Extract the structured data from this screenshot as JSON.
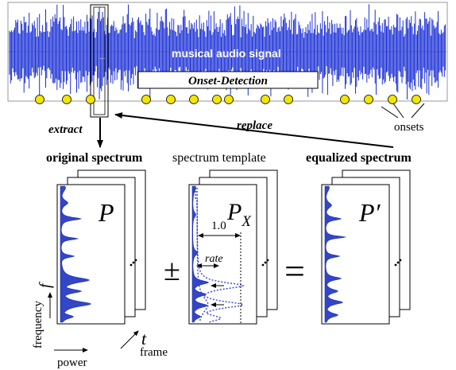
{
  "labels": {
    "signal": "musical audio signal",
    "onset_detection": "Onset-Detection",
    "onsets": "onsets",
    "extract": "extract",
    "replace": "replace",
    "original_spectrum": "original spectrum",
    "spectrum_template": "spectrum template",
    "equalized_spectrum": "equalized spectrum",
    "plus_minus": "±",
    "equals": "=",
    "frequency": "frequency",
    "power": "power",
    "frame": "frame",
    "rate": "rate",
    "one": "1.0",
    "dots": "..."
  },
  "symbols": {
    "P": "P",
    "P_main": "P",
    "P_sub": "X",
    "P_prime": "P′",
    "f": "f",
    "t": "t"
  },
  "colors": {
    "waveform": "#1a2fd6",
    "spectrum_fill": "#3346c8",
    "onset_dot": "#f2e600",
    "template_dotted": "#3344cc",
    "text": "#000000",
    "on_signal_text": "#ffffff"
  }
}
